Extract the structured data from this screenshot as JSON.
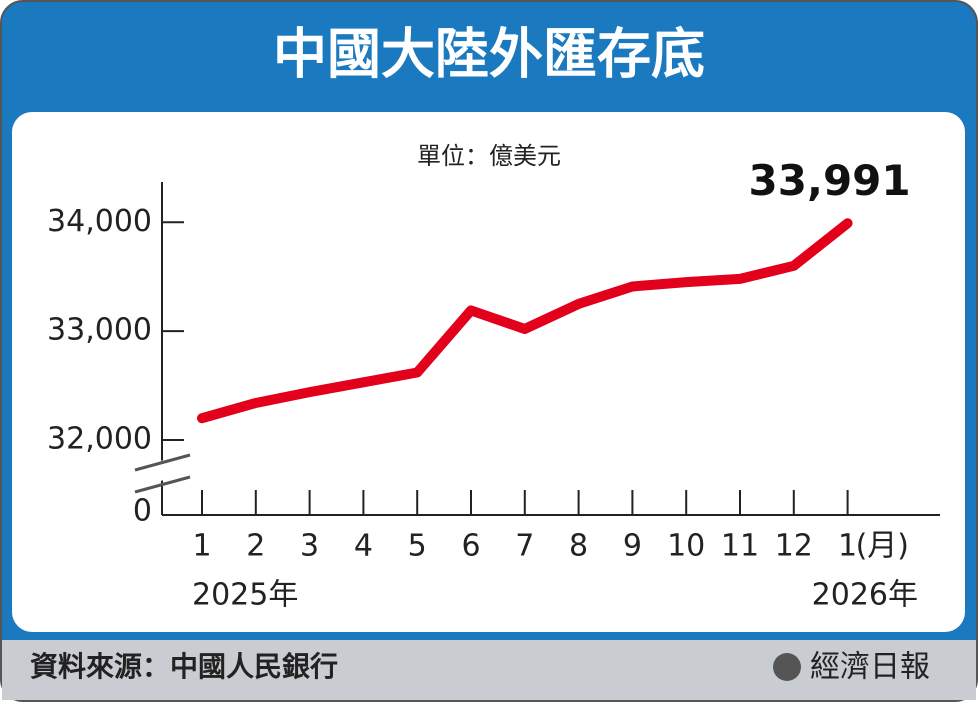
{
  "chart_data": {
    "type": "line",
    "title": "中國大陸外匯存底",
    "subtitle": "單位：億美元",
    "categories": [
      "1",
      "2",
      "3",
      "4",
      "5",
      "6",
      "7",
      "8",
      "9",
      "10",
      "11",
      "12",
      "1"
    ],
    "x_unit": "(月)",
    "year_labels": [
      "2025年",
      "2026年"
    ],
    "series": [
      {
        "name": "外匯存底",
        "color": "#e3001b",
        "values": [
          32200,
          32340,
          32440,
          32530,
          32620,
          33190,
          33020,
          33250,
          33410,
          33450,
          33480,
          33600,
          33991
        ],
        "value_labels": [
          null,
          null,
          null,
          null,
          null,
          null,
          null,
          null,
          null,
          null,
          null,
          null,
          "33,991"
        ]
      }
    ],
    "ylim": [
      32000,
      34370
    ],
    "yticks": [
      0,
      {
        "value": 32000,
        "label": "32,000"
      },
      {
        "value": 33000,
        "label": "33,000"
      },
      {
        "value": 34000,
        "label": "34,000"
      }
    ],
    "axis_break": true,
    "source": "資料來源：中國人民銀行",
    "publisher": "經濟日報"
  }
}
